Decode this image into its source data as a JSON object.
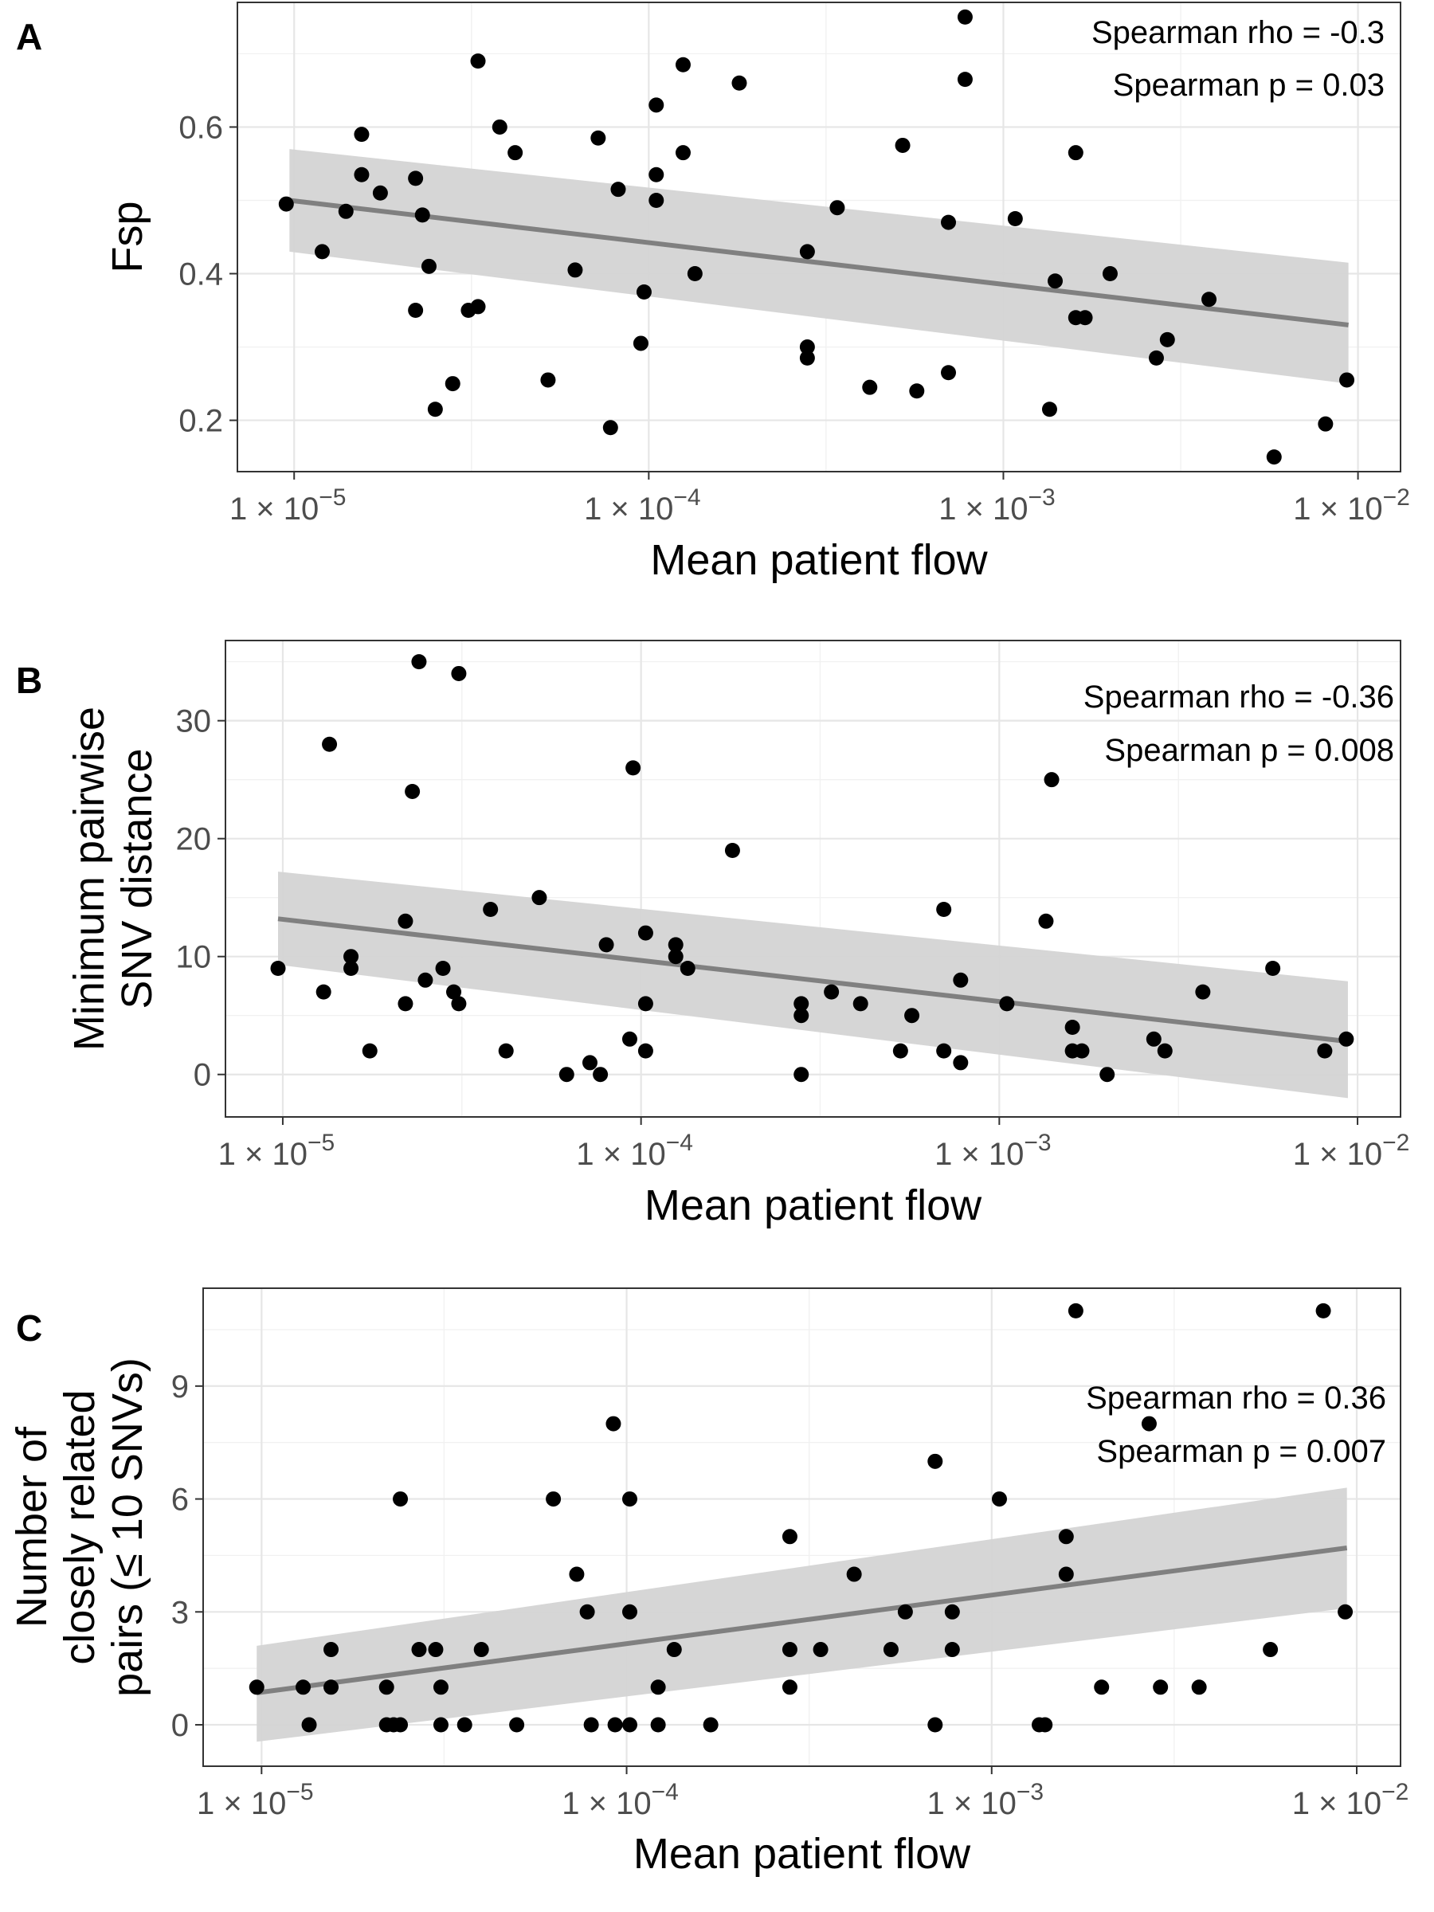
{
  "colors": {
    "point": "#000000",
    "fit_line": "#808080",
    "ribbon": "#d4d4d4",
    "grid": "#ebebeb",
    "frame": "#333333"
  },
  "chart_data": [
    {
      "type": "scatter",
      "panel": "A",
      "xlabel": "Mean patient flow",
      "ylabel": [
        "Fsp"
      ],
      "x_scale": "log10",
      "x_ticks": [
        1e-05,
        0.0001,
        0.001,
        0.01
      ],
      "x_tick_labels": [
        {
          "base": "1 × 10",
          "exp": "−5"
        },
        {
          "base": "1 × 10",
          "exp": "−4"
        },
        {
          "base": "1 × 10",
          "exp": "−3"
        },
        {
          "base": "1 × 10",
          "exp": "−2"
        }
      ],
      "y_ticks": [
        0.2,
        0.4,
        0.6
      ],
      "y_tick_labels": [
        "0.2",
        "0.4",
        "0.6"
      ],
      "ylim": [
        0.13,
        0.77
      ],
      "annotations": [
        "Spearman rho = -0.3",
        "Spearman p = 0.03"
      ],
      "fit": {
        "x": [
          9.7e-06,
          0.0094
        ],
        "y": [
          0.5,
          0.33
        ],
        "ci_lower": [
          0.43,
          0.25
        ],
        "ci_upper": [
          0.57,
          0.415
        ]
      },
      "points": [
        [
          9.5e-06,
          0.495
        ],
        [
          1.2e-05,
          0.43
        ],
        [
          1.4e-05,
          0.485
        ],
        [
          1.55e-05,
          0.59
        ],
        [
          1.55e-05,
          0.535
        ],
        [
          1.75e-05,
          0.51
        ],
        [
          2.2e-05,
          0.53
        ],
        [
          2.2e-05,
          0.35
        ],
        [
          2.3e-05,
          0.48
        ],
        [
          2.4e-05,
          0.41
        ],
        [
          2.5e-05,
          0.215
        ],
        [
          2.8e-05,
          0.25
        ],
        [
          3.1e-05,
          0.35
        ],
        [
          3.3e-05,
          0.355
        ],
        [
          3.3e-05,
          0.69
        ],
        [
          3.8e-05,
          0.6
        ],
        [
          4.2e-05,
          0.565
        ],
        [
          5.2e-05,
          0.255
        ],
        [
          6.2e-05,
          0.405
        ],
        [
          7.2e-05,
          0.585
        ],
        [
          7.8e-05,
          0.19
        ],
        [
          8.2e-05,
          0.515
        ],
        [
          9.5e-05,
          0.305
        ],
        [
          9.7e-05,
          0.375
        ],
        [
          0.000105,
          0.535
        ],
        [
          0.000105,
          0.5
        ],
        [
          0.000105,
          0.63
        ],
        [
          0.000125,
          0.685
        ],
        [
          0.000125,
          0.565
        ],
        [
          0.000135,
          0.4
        ],
        [
          0.00018,
          0.66
        ],
        [
          0.00028,
          0.43
        ],
        [
          0.00028,
          0.3
        ],
        [
          0.00028,
          0.285
        ],
        [
          0.00034,
          0.49
        ],
        [
          0.00042,
          0.245
        ],
        [
          0.00052,
          0.575
        ],
        [
          0.00057,
          0.24
        ],
        [
          0.0007,
          0.47
        ],
        [
          0.0007,
          0.265
        ],
        [
          0.00078,
          0.75
        ],
        [
          0.00078,
          0.665
        ],
        [
          0.00108,
          0.475
        ],
        [
          0.00135,
          0.215
        ],
        [
          0.0014,
          0.39
        ],
        [
          0.0016,
          0.565
        ],
        [
          0.0016,
          0.34
        ],
        [
          0.0017,
          0.34
        ],
        [
          0.002,
          0.4
        ],
        [
          0.0027,
          0.285
        ],
        [
          0.0029,
          0.31
        ],
        [
          0.0038,
          0.365
        ],
        [
          0.0058,
          0.15
        ],
        [
          0.0081,
          0.195
        ],
        [
          0.0093,
          0.255
        ]
      ]
    },
    {
      "type": "scatter",
      "panel": "B",
      "xlabel": "Mean patient flow",
      "ylabel": [
        "Minimum pairwise",
        "SNV distance"
      ],
      "x_scale": "log10",
      "x_ticks": [
        1e-05,
        0.0001,
        0.001,
        0.01
      ],
      "x_tick_labels": [
        {
          "base": "1 × 10",
          "exp": "−5"
        },
        {
          "base": "1 × 10",
          "exp": "−4"
        },
        {
          "base": "1 × 10",
          "exp": "−3"
        },
        {
          "base": "1 × 10",
          "exp": "−2"
        }
      ],
      "y_ticks": [
        0,
        10,
        20,
        30
      ],
      "y_tick_labels": [
        "0",
        "10",
        "20",
        "30"
      ],
      "ylim": [
        -3.6,
        36.8
      ],
      "annotations": [
        "Spearman rho = -0.36",
        "Spearman p = 0.008"
      ],
      "fit": {
        "x": [
          9.7e-06,
          0.0094
        ],
        "y": [
          13.2,
          2.8
        ],
        "ci_lower": [
          9.3,
          -2
        ],
        "ci_upper": [
          17.2,
          7.9
        ]
      },
      "points": [
        [
          9.7e-06,
          9
        ],
        [
          1.3e-05,
          7
        ],
        [
          1.35e-05,
          28
        ],
        [
          1.55e-05,
          9
        ],
        [
          1.55e-05,
          10
        ],
        [
          1.75e-05,
          2
        ],
        [
          2.2e-05,
          6
        ],
        [
          2.2e-05,
          13
        ],
        [
          2.3e-05,
          24
        ],
        [
          2.4e-05,
          35
        ],
        [
          2.5e-05,
          8
        ],
        [
          2.8e-05,
          9
        ],
        [
          3e-05,
          7
        ],
        [
          3.1e-05,
          6
        ],
        [
          3.1e-05,
          34
        ],
        [
          3.8e-05,
          14
        ],
        [
          4.2e-05,
          2
        ],
        [
          5.2e-05,
          15
        ],
        [
          6.2e-05,
          0
        ],
        [
          7.2e-05,
          1
        ],
        [
          7.7e-05,
          0
        ],
        [
          8e-05,
          11
        ],
        [
          9.3e-05,
          3
        ],
        [
          9.5e-05,
          26
        ],
        [
          0.000103,
          12
        ],
        [
          0.000103,
          6
        ],
        [
          0.000103,
          2
        ],
        [
          0.000125,
          11
        ],
        [
          0.000125,
          10
        ],
        [
          0.000135,
          9
        ],
        [
          0.00018,
          19
        ],
        [
          0.00028,
          6
        ],
        [
          0.00028,
          5
        ],
        [
          0.00028,
          0
        ],
        [
          0.00034,
          7
        ],
        [
          0.00041,
          6
        ],
        [
          0.00053,
          2
        ],
        [
          0.00057,
          5
        ],
        [
          0.0007,
          14
        ],
        [
          0.0007,
          2
        ],
        [
          0.00078,
          8
        ],
        [
          0.00078,
          1
        ],
        [
          0.00105,
          6
        ],
        [
          0.00135,
          13
        ],
        [
          0.0014,
          25
        ],
        [
          0.0016,
          4
        ],
        [
          0.0016,
          2
        ],
        [
          0.0017,
          2
        ],
        [
          0.002,
          0
        ],
        [
          0.0027,
          3
        ],
        [
          0.0029,
          2
        ],
        [
          0.0037,
          7
        ],
        [
          0.0058,
          9
        ],
        [
          0.0081,
          2
        ],
        [
          0.0093,
          3
        ]
      ]
    },
    {
      "type": "scatter",
      "panel": "C",
      "xlabel": "Mean patient flow",
      "ylabel": [
        "Number of",
        "closely related",
        "pairs (≤ 10 SNVs)"
      ],
      "x_scale": "log10",
      "x_ticks": [
        1e-05,
        0.0001,
        0.001,
        0.01
      ],
      "x_tick_labels": [
        {
          "base": "1 × 10",
          "exp": "−5"
        },
        {
          "base": "1 × 10",
          "exp": "−4"
        },
        {
          "base": "1 × 10",
          "exp": "−3"
        },
        {
          "base": "1 × 10",
          "exp": "−2"
        }
      ],
      "y_ticks": [
        0,
        3,
        6,
        9
      ],
      "y_tick_labels": [
        "0",
        "3",
        "6",
        "9"
      ],
      "ylim": [
        -1.1,
        11.6
      ],
      "annotations": [
        "Spearman rho = 0.36",
        "Spearman p = 0.007"
      ],
      "fit": {
        "x": [
          9.7e-06,
          0.0094
        ],
        "y": [
          0.85,
          4.7
        ],
        "ci_lower": [
          -0.45,
          3.1
        ],
        "ci_upper": [
          2.1,
          6.3
        ]
      },
      "points": [
        [
          9.7e-06,
          1
        ],
        [
          1.3e-05,
          1
        ],
        [
          1.35e-05,
          0
        ],
        [
          1.55e-05,
          1
        ],
        [
          1.55e-05,
          2
        ],
        [
          2.2e-05,
          1
        ],
        [
          2.2e-05,
          0
        ],
        [
          2.3e-05,
          0
        ],
        [
          2.4e-05,
          0
        ],
        [
          2.4e-05,
          6
        ],
        [
          2.7e-05,
          2
        ],
        [
          3e-05,
          2
        ],
        [
          3.1e-05,
          1
        ],
        [
          3.1e-05,
          0
        ],
        [
          3.6e-05,
          0
        ],
        [
          4e-05,
          2
        ],
        [
          5e-05,
          0
        ],
        [
          6.3e-05,
          6
        ],
        [
          7.3e-05,
          4
        ],
        [
          7.8e-05,
          3
        ],
        [
          8e-05,
          0
        ],
        [
          9.2e-05,
          8
        ],
        [
          9.3e-05,
          0
        ],
        [
          0.000102,
          6
        ],
        [
          0.000102,
          3
        ],
        [
          0.000102,
          0
        ],
        [
          0.000122,
          1
        ],
        [
          0.000122,
          0
        ],
        [
          0.000135,
          2
        ],
        [
          0.00017,
          0
        ],
        [
          0.00028,
          5
        ],
        [
          0.00028,
          2
        ],
        [
          0.00028,
          1
        ],
        [
          0.00034,
          2
        ],
        [
          0.00042,
          4
        ],
        [
          0.00053,
          2
        ],
        [
          0.00058,
          3
        ],
        [
          0.0007,
          7
        ],
        [
          0.0007,
          0
        ],
        [
          0.00078,
          3
        ],
        [
          0.00078,
          2
        ],
        [
          0.00105,
          6
        ],
        [
          0.00135,
          0
        ],
        [
          0.0014,
          0
        ],
        [
          0.0016,
          5
        ],
        [
          0.0016,
          4
        ],
        [
          0.0017,
          11
        ],
        [
          0.002,
          1
        ],
        [
          0.0027,
          8
        ],
        [
          0.0029,
          1
        ],
        [
          0.0037,
          1
        ],
        [
          0.0058,
          2
        ],
        [
          0.0081,
          11
        ],
        [
          0.0093,
          3
        ]
      ]
    }
  ]
}
